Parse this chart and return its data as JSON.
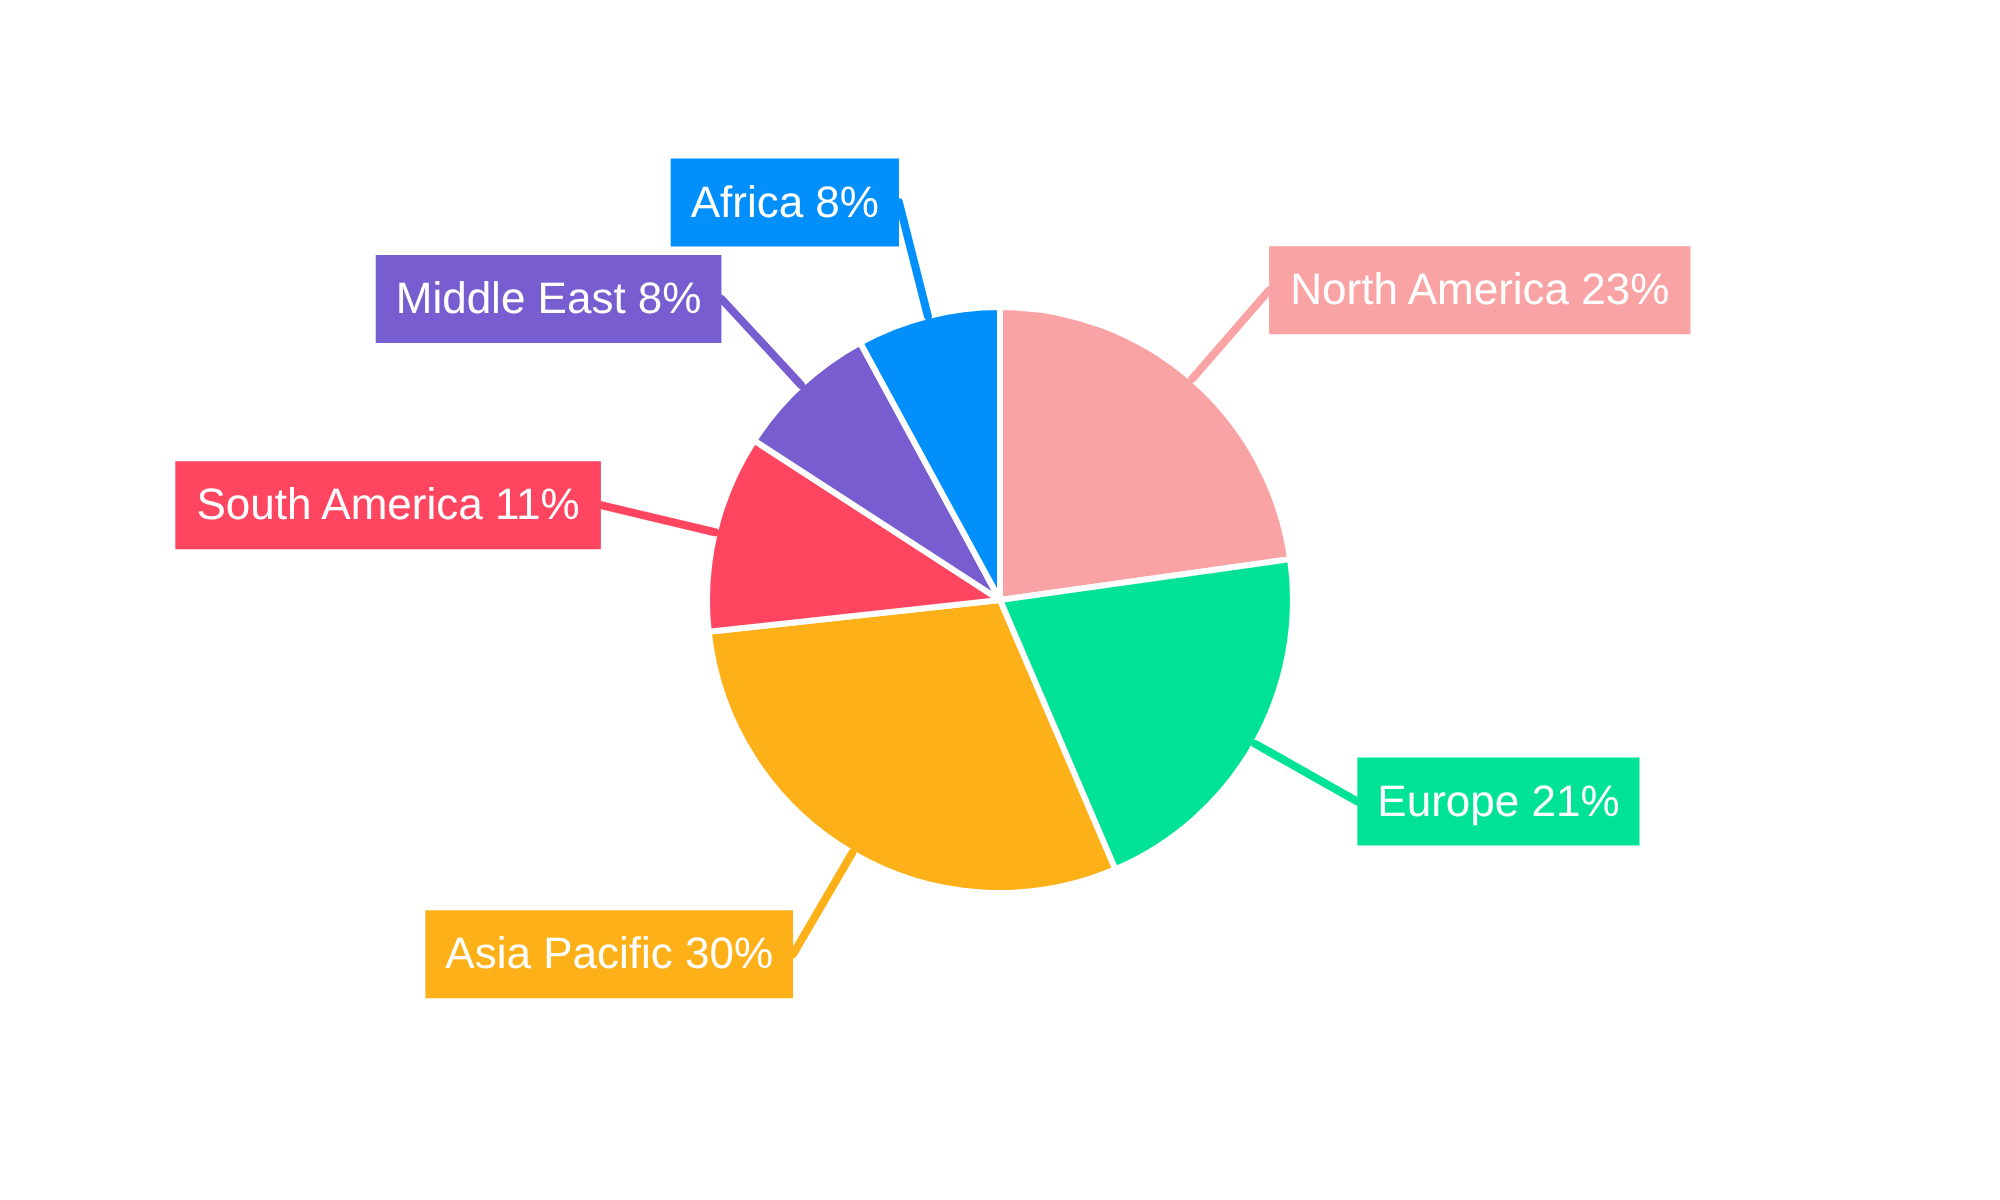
{
  "chart_data": {
    "type": "pie",
    "categories": [
      "North America",
      "Europe",
      "Asia Pacific",
      "South America",
      "Middle East",
      "Africa"
    ],
    "values": [
      23,
      21,
      30,
      11,
      8,
      8
    ],
    "value_labels": [
      "23%",
      "21%",
      "30%",
      "11%",
      "8%",
      "8%"
    ],
    "colors": [
      "#f9a3a4",
      "#00e396",
      "#feb019",
      "#ff4560",
      "#775dd0",
      "#008ffb"
    ],
    "legend": false
  }
}
